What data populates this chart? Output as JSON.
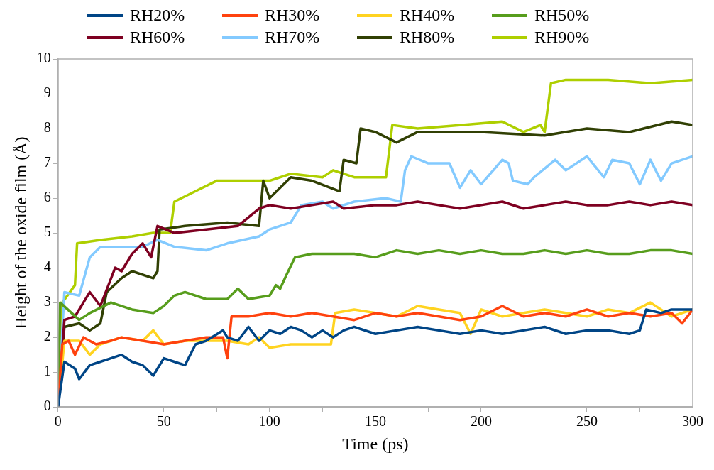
{
  "chart_data": {
    "type": "line",
    "xlabel": "Time (ps)",
    "ylabel": "Height of the oxide film (Å)",
    "xlim": [
      0,
      300
    ],
    "xticks": [
      0,
      {
        "value": 25,
        "label": null
      },
      50,
      {
        "value": 75,
        "label": null
      },
      100,
      {
        "value": 125,
        "label": null
      },
      150,
      {
        "value": 175,
        "label": null
      },
      200,
      {
        "value": 225,
        "label": null
      },
      250,
      {
        "value": 275,
        "label": null
      },
      300
    ],
    "ylim": [
      0,
      10
    ],
    "yticks": [
      0,
      1,
      2,
      3,
      4,
      5,
      6,
      7,
      8,
      9,
      10
    ],
    "grid": false,
    "legend": "top",
    "marker": "none",
    "line_style": "solid",
    "series": [
      {
        "name": "RH20%",
        "color": "#004586",
        "x": [
          0,
          3,
          8,
          10,
          15,
          20,
          25,
          30,
          35,
          40,
          45,
          50,
          55,
          60,
          65,
          70,
          78,
          80,
          85,
          90,
          95,
          100,
          105,
          110,
          115,
          120,
          125,
          130,
          135,
          140,
          150,
          160,
          170,
          180,
          190,
          200,
          210,
          220,
          230,
          240,
          250,
          260,
          270,
          275,
          278,
          285,
          290,
          300
        ],
        "values": [
          0,
          1.3,
          1.1,
          0.8,
          1.2,
          1.3,
          1.4,
          1.5,
          1.3,
          1.2,
          0.9,
          1.4,
          1.3,
          1.2,
          1.8,
          1.9,
          2.2,
          2.0,
          1.9,
          2.3,
          1.9,
          2.2,
          2.1,
          2.3,
          2.2,
          2.0,
          2.2,
          2.0,
          2.2,
          2.3,
          2.1,
          2.2,
          2.3,
          2.2,
          2.1,
          2.2,
          2.1,
          2.2,
          2.3,
          2.1,
          2.2,
          2.2,
          2.1,
          2.2,
          2.8,
          2.7,
          2.8,
          2.8
        ]
      },
      {
        "name": "RH30%",
        "color": "#ff420e",
        "x": [
          0,
          2,
          5,
          8,
          12,
          18,
          25,
          30,
          40,
          50,
          60,
          70,
          78,
          80,
          82,
          90,
          100,
          110,
          120,
          130,
          140,
          150,
          160,
          170,
          180,
          190,
          200,
          210,
          220,
          230,
          240,
          250,
          260,
          270,
          280,
          290,
          295,
          300
        ],
        "values": [
          0,
          1.8,
          1.9,
          1.5,
          2.0,
          1.8,
          1.9,
          2.0,
          1.9,
          1.8,
          1.9,
          2.0,
          2.0,
          1.4,
          2.6,
          2.6,
          2.7,
          2.6,
          2.7,
          2.6,
          2.5,
          2.7,
          2.6,
          2.7,
          2.6,
          2.5,
          2.6,
          2.9,
          2.6,
          2.7,
          2.6,
          2.8,
          2.6,
          2.7,
          2.6,
          2.7,
          2.4,
          2.8
        ]
      },
      {
        "name": "RH40%",
        "color": "#ffd320",
        "x": [
          0,
          3,
          10,
          15,
          20,
          30,
          40,
          45,
          50,
          60,
          70,
          80,
          90,
          95,
          100,
          110,
          120,
          129,
          131,
          140,
          150,
          160,
          170,
          180,
          190,
          195,
          200,
          210,
          220,
          230,
          240,
          250,
          260,
          270,
          280,
          290,
          300
        ],
        "values": [
          0,
          1.9,
          1.9,
          1.5,
          1.8,
          2.0,
          1.9,
          2.2,
          1.8,
          1.9,
          1.9,
          1.9,
          1.8,
          2.0,
          1.7,
          1.8,
          1.8,
          1.8,
          2.7,
          2.8,
          2.7,
          2.6,
          2.9,
          2.8,
          2.7,
          2.1,
          2.8,
          2.6,
          2.7,
          2.8,
          2.7,
          2.6,
          2.8,
          2.7,
          3.0,
          2.6,
          2.8
        ]
      },
      {
        "name": "RH50%",
        "color": "#579d1c",
        "x": [
          0,
          1,
          10,
          15,
          25,
          35,
          45,
          50,
          55,
          60,
          70,
          80,
          85,
          90,
          100,
          103,
          105,
          108,
          112,
          120,
          130,
          140,
          150,
          160,
          170,
          180,
          190,
          200,
          210,
          220,
          230,
          240,
          250,
          260,
          270,
          280,
          290,
          300
        ],
        "values": [
          0,
          3.0,
          2.5,
          2.7,
          3.0,
          2.8,
          2.7,
          2.9,
          3.2,
          3.3,
          3.1,
          3.1,
          3.4,
          3.1,
          3.2,
          3.5,
          3.4,
          3.8,
          4.3,
          4.4,
          4.4,
          4.4,
          4.3,
          4.5,
          4.4,
          4.5,
          4.4,
          4.5,
          4.4,
          4.4,
          4.5,
          4.4,
          4.5,
          4.4,
          4.4,
          4.5,
          4.5,
          4.4
        ]
      },
      {
        "name": "RH60%",
        "color": "#7e0021",
        "x": [
          0,
          3,
          8,
          15,
          20,
          27,
          30,
          35,
          40,
          44,
          47,
          55,
          70,
          85,
          95,
          100,
          110,
          120,
          130,
          135,
          150,
          160,
          170,
          180,
          190,
          200,
          210,
          220,
          230,
          240,
          250,
          260,
          270,
          280,
          290,
          300
        ],
        "values": [
          0,
          2.5,
          2.6,
          3.3,
          2.9,
          4.0,
          3.9,
          4.4,
          4.7,
          4.3,
          5.2,
          5.0,
          5.1,
          5.2,
          5.7,
          5.8,
          5.7,
          5.8,
          5.9,
          5.7,
          5.8,
          5.8,
          5.9,
          5.8,
          5.7,
          5.8,
          5.9,
          5.7,
          5.8,
          5.9,
          5.8,
          5.8,
          5.9,
          5.8,
          5.9,
          5.8
        ]
      },
      {
        "name": "RH70%",
        "color": "#83caff",
        "x": [
          0,
          3,
          10,
          15,
          20,
          40,
          47,
          55,
          70,
          80,
          95,
          100,
          110,
          115,
          125,
          130,
          140,
          155,
          162,
          164,
          167,
          175,
          185,
          190,
          195,
          200,
          210,
          213,
          215,
          222,
          225,
          235,
          240,
          250,
          258,
          262,
          270,
          275,
          280,
          285,
          290,
          300
        ],
        "values": [
          0,
          3.3,
          3.2,
          4.3,
          4.6,
          4.6,
          4.8,
          4.6,
          4.5,
          4.7,
          4.9,
          5.1,
          5.3,
          5.8,
          5.9,
          5.7,
          5.9,
          6.0,
          5.9,
          6.8,
          7.2,
          7.0,
          7.0,
          6.3,
          6.8,
          6.4,
          7.1,
          7.0,
          6.5,
          6.4,
          6.6,
          7.1,
          6.8,
          7.2,
          6.6,
          7.1,
          7.0,
          6.4,
          7.1,
          6.5,
          7.0,
          7.2
        ]
      },
      {
        "name": "RH80%",
        "color": "#314004",
        "x": [
          0,
          3,
          10,
          15,
          20,
          23,
          30,
          35,
          45,
          47,
          48,
          60,
          80,
          95,
          97,
          100,
          110,
          120,
          133,
          135,
          141,
          143,
          150,
          160,
          170,
          200,
          230,
          250,
          270,
          290,
          300
        ],
        "values": [
          0,
          2.3,
          2.4,
          2.2,
          2.4,
          3.3,
          3.7,
          3.9,
          3.7,
          3.9,
          5.1,
          5.2,
          5.3,
          5.2,
          6.5,
          6.0,
          6.6,
          6.5,
          6.2,
          7.1,
          7.0,
          8.0,
          7.9,
          7.6,
          7.9,
          7.9,
          7.8,
          8.0,
          7.9,
          8.2,
          8.1
        ]
      },
      {
        "name": "RH90%",
        "color": "#aecf00",
        "x": [
          0,
          2,
          8,
          9,
          20,
          35,
          45,
          53,
          55,
          65,
          75,
          100,
          110,
          125,
          130,
          140,
          155,
          158,
          170,
          190,
          210,
          220,
          228,
          230,
          233,
          240,
          260,
          280,
          300
        ],
        "values": [
          0,
          3.0,
          3.5,
          4.7,
          4.8,
          4.9,
          5.0,
          5.0,
          5.9,
          6.2,
          6.5,
          6.5,
          6.7,
          6.6,
          6.8,
          6.6,
          6.6,
          8.1,
          8.0,
          8.1,
          8.2,
          7.9,
          8.1,
          7.9,
          9.3,
          9.4,
          9.4,
          9.3,
          9.4
        ]
      }
    ]
  }
}
